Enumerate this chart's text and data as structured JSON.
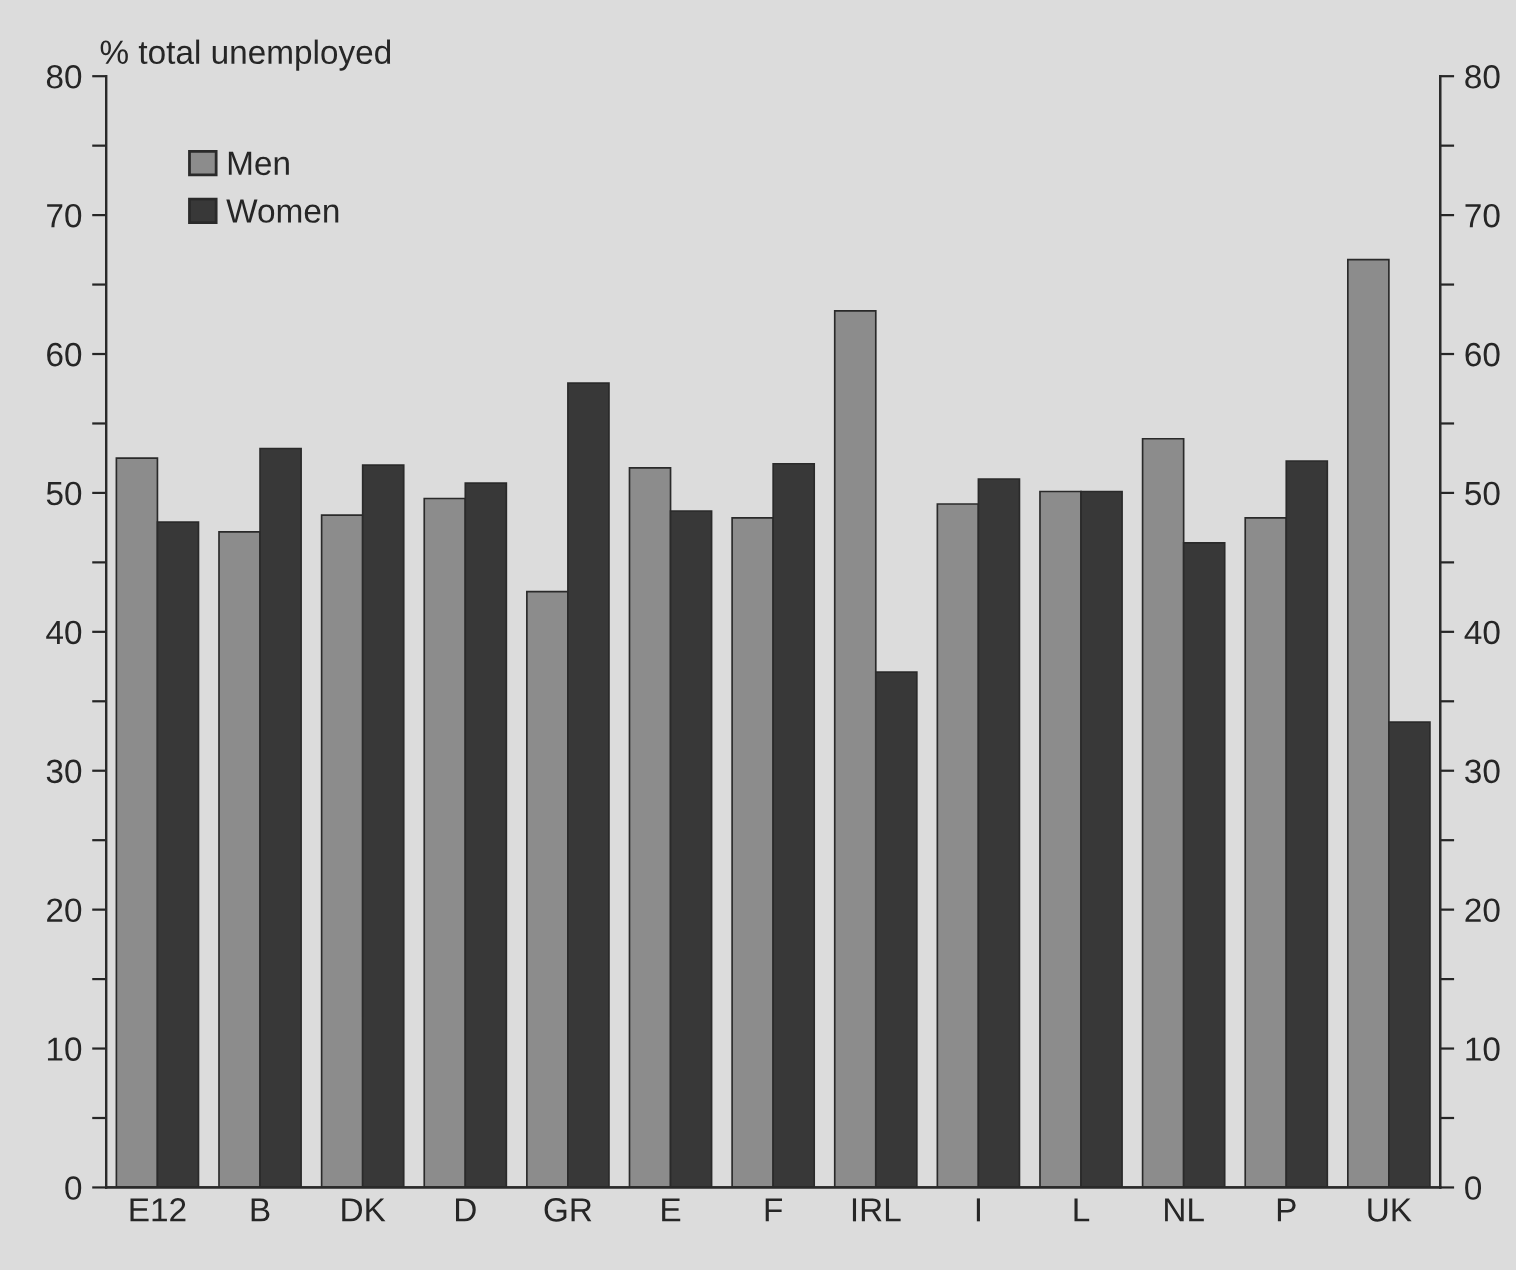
{
  "chart_data": {
    "type": "bar",
    "ylabel": "% total unemployed",
    "categories": [
      "E12",
      "B",
      "DK",
      "D",
      "GR",
      "E",
      "F",
      "IRL",
      "I",
      "L",
      "NL",
      "P",
      "UK"
    ],
    "series": [
      {
        "name": "Men",
        "color": "#8c8c8c",
        "values": [
          52.5,
          47.2,
          48.4,
          49.6,
          42.9,
          51.8,
          48.2,
          63.1,
          49.2,
          50.1,
          53.9,
          48.2,
          66.8
        ]
      },
      {
        "name": "Women",
        "color": "#383838",
        "values": [
          47.9,
          53.2,
          52.0,
          50.7,
          57.9,
          48.7,
          52.1,
          37.1,
          51.0,
          50.1,
          46.4,
          52.3,
          33.5
        ]
      }
    ],
    "ylim": [
      0,
      80
    ],
    "yticks": [
      0,
      {
        "value": 5,
        "label": null
      },
      10,
      {
        "value": 15,
        "label": null
      },
      20,
      {
        "value": 25,
        "label": null
      },
      30,
      {
        "value": 35,
        "label": null
      },
      40,
      {
        "value": 45,
        "label": null
      },
      50,
      {
        "value": 55,
        "label": null
      },
      60,
      {
        "value": 65,
        "label": null
      },
      70,
      {
        "value": 75,
        "label": null
      },
      80
    ],
    "y2lim": [
      0,
      80
    ],
    "y2ticks": [
      0,
      {
        "value": 5,
        "label": null
      },
      10,
      {
        "value": 15,
        "label": null
      },
      20,
      {
        "value": 25,
        "label": null
      },
      30,
      {
        "value": 35,
        "label": null
      },
      40,
      {
        "value": 45,
        "label": null
      },
      50,
      {
        "value": 55,
        "label": null
      },
      60,
      {
        "value": 65,
        "label": null
      },
      70,
      {
        "value": 75,
        "label": null
      },
      80
    ],
    "legend": "top left",
    "grid": false
  }
}
